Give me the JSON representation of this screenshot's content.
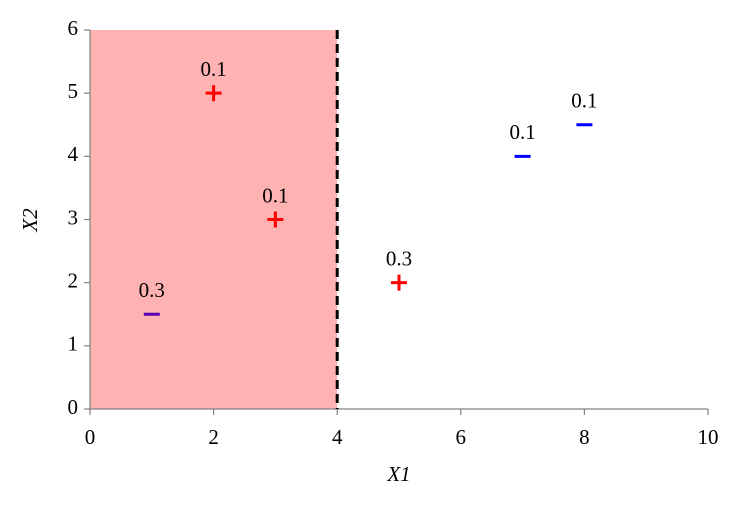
{
  "chart_data": {
    "type": "scatter",
    "xlabel": "X1",
    "ylabel": "X2",
    "xlim": [
      0,
      10
    ],
    "ylim": [
      0,
      6
    ],
    "xticks": [
      0,
      2,
      4,
      6,
      8,
      10
    ],
    "yticks": [
      0,
      1,
      2,
      3,
      4,
      5,
      6
    ],
    "threshold": 4,
    "region": {
      "xlim": [
        0,
        4
      ],
      "color": "#ff0000",
      "opacity": 0.3
    },
    "points": [
      {
        "x": 2,
        "y": 5,
        "marker": "plus",
        "color": "#ff0000",
        "weight": 0.1
      },
      {
        "x": 3,
        "y": 3,
        "marker": "plus",
        "color": "#ff0000",
        "weight": 0.1
      },
      {
        "x": 5,
        "y": 2,
        "marker": "plus",
        "color": "#ff0000",
        "weight": 0.3
      },
      {
        "x": 1,
        "y": 1.5,
        "marker": "minus",
        "color": "#5a00b4",
        "weight": 0.3
      },
      {
        "x": 7,
        "y": 4,
        "marker": "minus",
        "color": "#0000ff",
        "weight": 0.1
      },
      {
        "x": 8,
        "y": 4.5,
        "marker": "minus",
        "color": "#0000ff",
        "weight": 0.1
      }
    ]
  }
}
